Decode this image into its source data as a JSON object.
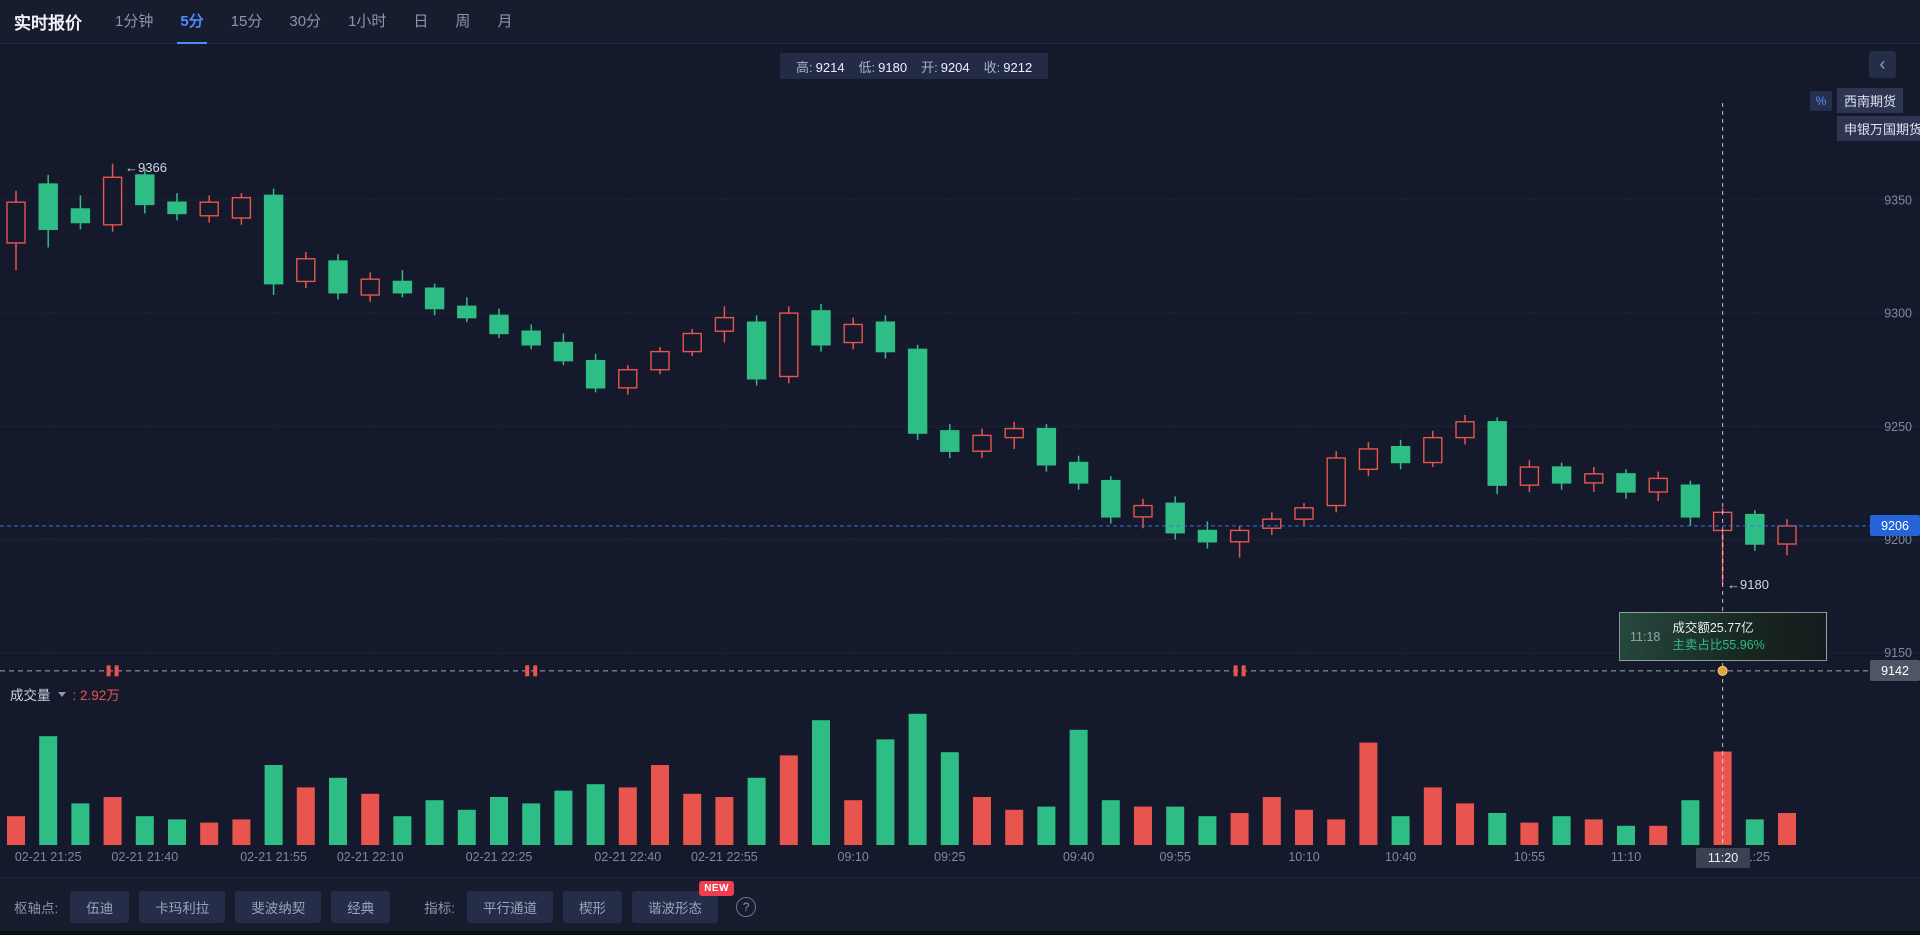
{
  "topbar": {
    "title": "实时报价",
    "tabs": [
      {
        "label": "1分钟",
        "active": false
      },
      {
        "label": "5分",
        "active": true
      },
      {
        "label": "15分",
        "active": false
      },
      {
        "label": "30分",
        "active": false
      },
      {
        "label": "1小时",
        "active": false
      },
      {
        "label": "日",
        "active": false
      },
      {
        "label": "周",
        "active": false
      },
      {
        "label": "月",
        "active": false
      }
    ]
  },
  "ohlc_bar": {
    "items": [
      {
        "label": "高:",
        "value": "9214"
      },
      {
        "label": "低:",
        "value": "9180"
      },
      {
        "label": "开:",
        "value": "9204"
      },
      {
        "label": "收:",
        "value": "9212"
      }
    ]
  },
  "icons": {
    "collapse": "‹",
    "help": "?",
    "broker_stat": "%"
  },
  "right_panel": {
    "badges": [
      "西南期货",
      "申银万国期货"
    ]
  },
  "annotations": {
    "high": "←9366",
    "low": "←9180"
  },
  "tooltip": {
    "time": "11:18",
    "line1": "成交额25.77亿",
    "line2": "主卖占比55.96%"
  },
  "price_labels": {
    "current": "9206",
    "marker": "9142"
  },
  "time_badge": "11:20",
  "volume_header": {
    "label": "成交量",
    "value": ": 2.92万"
  },
  "toolbar": {
    "pivot_label": "枢轴点:",
    "pivot_buttons": [
      "伍迪",
      "卡玛利拉",
      "斐波纳契",
      "经典"
    ],
    "indicator_label": "指标:",
    "indicator_buttons": [
      "平行通道",
      "楔形",
      "谐波形态"
    ],
    "new_badge": "NEW"
  },
  "colors": {
    "up": "#e8544e",
    "down": "#2ebd85",
    "accent": "#4d8bff",
    "current_price_line": "#3f6fe0",
    "current_price_bg": "#2563d9",
    "marker_line": "#9aa3b5",
    "marker_bg": "#4e5565",
    "crosshair": "rgba(240,244,255,0.65)",
    "dot": "#e7a13c",
    "axis_text": "#7e88a0"
  },
  "chart_data": {
    "type": "candlestick+volume",
    "interval_label": "5分",
    "price_ticks": [
      9350,
      9300,
      9250,
      9200,
      9150
    ],
    "current_price": 9206,
    "marker_price": 9142,
    "crosshair_index": 53,
    "hovered_candle": {
      "open": 9204,
      "high": 9214,
      "low": 9180,
      "close": 9212,
      "volume_wan": 2.92
    },
    "signal_marker_indices": [
      3,
      16,
      38
    ],
    "volume_unit": "万",
    "x_ticks": [
      {
        "i": 1,
        "label": "02-21 21:25"
      },
      {
        "i": 4,
        "label": "02-21 21:40"
      },
      {
        "i": 8,
        "label": "02-21 21:55"
      },
      {
        "i": 11,
        "label": "02-21 22:10"
      },
      {
        "i": 15,
        "label": "02-21 22:25"
      },
      {
        "i": 19,
        "label": "02-21 22:40"
      },
      {
        "i": 22,
        "label": "02-21 22:55"
      },
      {
        "i": 26,
        "label": "09:10"
      },
      {
        "i": 29,
        "label": "09:25"
      },
      {
        "i": 33,
        "label": "09:40"
      },
      {
        "i": 36,
        "label": "09:55"
      },
      {
        "i": 40,
        "label": "10:10"
      },
      {
        "i": 43,
        "label": "10:40"
      },
      {
        "i": 47,
        "label": "10:55"
      },
      {
        "i": 50,
        "label": "11:10"
      },
      {
        "i": 54,
        "label": "11:25"
      }
    ],
    "candles": [
      [
        9331,
        9354,
        9319,
        9349,
        0.9
      ],
      [
        9357,
        9361,
        9329,
        9337,
        3.4
      ],
      [
        9346,
        9352,
        9337,
        9340,
        1.3
      ],
      [
        9339,
        9366,
        9336,
        9360,
        1.5
      ],
      [
        9361,
        9364,
        9344,
        9348,
        0.9
      ],
      [
        9349,
        9353,
        9341,
        9344,
        0.8
      ],
      [
        9343,
        9352,
        9340,
        9349,
        0.7
      ],
      [
        9342,
        9353,
        9339,
        9351,
        0.8
      ],
      [
        9352,
        9355,
        9308,
        9313,
        2.5
      ],
      [
        9314,
        9327,
        9311,
        9324,
        1.8
      ],
      [
        9323,
        9326,
        9306,
        9309,
        2.1
      ],
      [
        9308,
        9318,
        9305,
        9315,
        1.6
      ],
      [
        9314,
        9319,
        9307,
        9309,
        0.9
      ],
      [
        9311,
        9313,
        9299,
        9302,
        1.4
      ],
      [
        9303,
        9307,
        9296,
        9298,
        1.1
      ],
      [
        9299,
        9302,
        9289,
        9291,
        1.5
      ],
      [
        9292,
        9295,
        9284,
        9286,
        1.3
      ],
      [
        9287,
        9291,
        9277,
        9279,
        1.7
      ],
      [
        9279,
        9282,
        9265,
        9267,
        1.9
      ],
      [
        9267,
        9277,
        9264,
        9275,
        1.8
      ],
      [
        9275,
        9285,
        9273,
        9283,
        2.5
      ],
      [
        9283,
        9293,
        9281,
        9291,
        1.6
      ],
      [
        9292,
        9303,
        9287,
        9298,
        1.5
      ],
      [
        9296,
        9299,
        9268,
        9271,
        2.1
      ],
      [
        9272,
        9303,
        9269,
        9300,
        2.8
      ],
      [
        9301,
        9304,
        9283,
        9286,
        3.9
      ],
      [
        9287,
        9298,
        9284,
        9295,
        1.4
      ],
      [
        9296,
        9299,
        9280,
        9283,
        3.3
      ],
      [
        9284,
        9286,
        9244,
        9247,
        4.1
      ],
      [
        9248,
        9251,
        9236,
        9239,
        2.9
      ],
      [
        9239,
        9249,
        9236,
        9246,
        1.5
      ],
      [
        9245,
        9252,
        9240,
        9249,
        1.1
      ],
      [
        9249,
        9251,
        9230,
        9233,
        1.2
      ],
      [
        9234,
        9237,
        9222,
        9225,
        3.6
      ],
      [
        9226,
        9228,
        9207,
        9210,
        1.4
      ],
      [
        9210,
        9218,
        9205,
        9215,
        1.2
      ],
      [
        9216,
        9219,
        9200,
        9203,
        1.2
      ],
      [
        9204,
        9208,
        9196,
        9199,
        0.9
      ],
      [
        9199,
        9206,
        9192,
        9204,
        1.0
      ],
      [
        9205,
        9212,
        9202,
        9209,
        1.5
      ],
      [
        9209,
        9216,
        9206,
        9214,
        1.1
      ],
      [
        9215,
        9239,
        9212,
        9236,
        0.8
      ],
      [
        9231,
        9243,
        9228,
        9240,
        3.2
      ],
      [
        9241,
        9244,
        9231,
        9234,
        0.9
      ],
      [
        9234,
        9248,
        9232,
        9245,
        1.8
      ],
      [
        9245,
        9255,
        9242,
        9252,
        1.3
      ],
      [
        9252,
        9254,
        9220,
        9224,
        1.0
      ],
      [
        9224,
        9235,
        9221,
        9232,
        0.7
      ],
      [
        9232,
        9234,
        9222,
        9225,
        0.9
      ],
      [
        9225,
        9232,
        9221,
        9229,
        0.8
      ],
      [
        9229,
        9231,
        9218,
        9221,
        0.6
      ],
      [
        9221,
        9230,
        9217,
        9227,
        0.6
      ],
      [
        9224,
        9226,
        9206,
        9210,
        1.4
      ],
      [
        9204,
        9214,
        9180,
        9212,
        2.92
      ],
      [
        9211,
        9213,
        9195,
        9198,
        0.8
      ],
      [
        9198,
        9209,
        9193,
        9206,
        1.0
      ]
    ]
  }
}
